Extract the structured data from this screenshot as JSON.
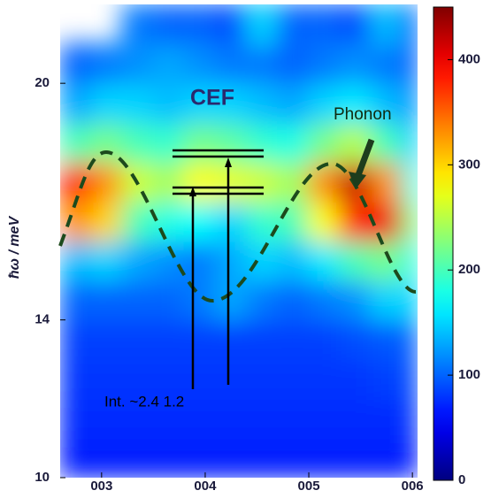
{
  "chart_data": {
    "type": "heatmap",
    "ylabel": "ħω / meV",
    "annotations": [
      "CEF",
      "Phonon",
      "Int. ~2.4 1.2"
    ],
    "xbins": [
      2.6,
      2.9,
      3.2,
      3.5,
      3.8,
      4.1,
      4.4,
      4.7,
      5.0,
      5.3,
      5.6,
      5.9,
      6.05
    ],
    "ybins": [
      10,
      11,
      12,
      13,
      14,
      15,
      16,
      17,
      18,
      19,
      20,
      21,
      22
    ],
    "values": [
      [
        70,
        70,
        70,
        70,
        70,
        70,
        70,
        70,
        70,
        70,
        70,
        70
      ],
      [
        75,
        75,
        75,
        75,
        75,
        75,
        75,
        75,
        75,
        75,
        75,
        80
      ],
      [
        80,
        80,
        80,
        80,
        80,
        80,
        80,
        80,
        80,
        80,
        85,
        90
      ],
      [
        85,
        85,
        85,
        85,
        85,
        85,
        85,
        85,
        85,
        90,
        95,
        100
      ],
      [
        100,
        100,
        100,
        100,
        110,
        130,
        110,
        100,
        110,
        120,
        150,
        150
      ],
      [
        140,
        150,
        130,
        120,
        110,
        130,
        150,
        140,
        160,
        200,
        220,
        180
      ],
      [
        330,
        300,
        200,
        180,
        170,
        150,
        190,
        200,
        280,
        380,
        400,
        220
      ],
      [
        380,
        330,
        260,
        240,
        280,
        270,
        260,
        240,
        330,
        420,
        330,
        180
      ],
      [
        200,
        220,
        200,
        190,
        220,
        210,
        190,
        180,
        220,
        250,
        200,
        150
      ],
      [
        130,
        150,
        150,
        140,
        150,
        150,
        140,
        130,
        150,
        160,
        140,
        120
      ],
      [
        100,
        110,
        120,
        130,
        120,
        110,
        110,
        100,
        110,
        120,
        110,
        100
      ],
      [
        null,
        null,
        110,
        100,
        100,
        90,
        150,
        100,
        100,
        90,
        140,
        100
      ]
    ],
    "colormap": "jet",
    "xlim": [
      2.6,
      6.05
    ],
    "ylim": [
      10,
      22
    ],
    "clim": [
      0,
      450
    ],
    "xticks": [
      {
        "value": 3,
        "label": "003"
      },
      {
        "value": 4,
        "label": "004"
      },
      {
        "value": 5,
        "label": "005"
      },
      {
        "value": 6,
        "label": "006"
      }
    ],
    "yticks": [
      10,
      14,
      20
    ],
    "cticks": [
      0,
      100,
      200,
      300,
      400
    ]
  }
}
